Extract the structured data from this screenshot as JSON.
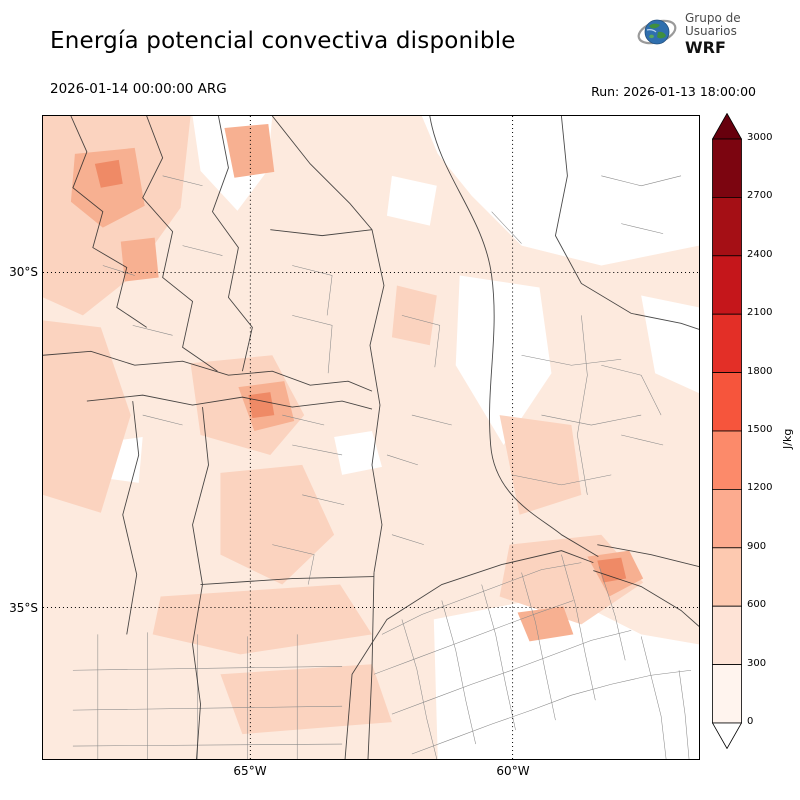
{
  "header": {
    "title": "Energía potencial convectiva disponible",
    "logo": {
      "line1": "Grupo de",
      "line2": "Usuarios",
      "line3": "WRF"
    }
  },
  "times": {
    "valid": "2026-01-14 00:00:00 ARG",
    "run": "Run: 2026-01-13 18:00:00"
  },
  "axes": {
    "lat": [
      "30°S",
      "35°S"
    ],
    "lon": [
      "65°W",
      "60°W"
    ]
  },
  "colorbar": {
    "unit": "J/kg",
    "ticks": [
      "3000",
      "2700",
      "2400",
      "2100",
      "1800",
      "1500",
      "1200",
      "900",
      "600",
      "300",
      "0"
    ],
    "segment_colors_top_to_bottom": [
      "#7c0510",
      "#a50f15",
      "#c5161b",
      "#e32f27",
      "#f6553c",
      "#fc8a6a",
      "#fcab8f",
      "#fdc9b0",
      "#fee3d6",
      "#fff4ee"
    ],
    "over_color": "#67000d",
    "under_color": "#ffffff"
  },
  "map_palette": {
    "base": "#fdeade",
    "medium": "#fbd3bf",
    "dark": "#f7b091",
    "darkest": "#ef8a66"
  }
}
